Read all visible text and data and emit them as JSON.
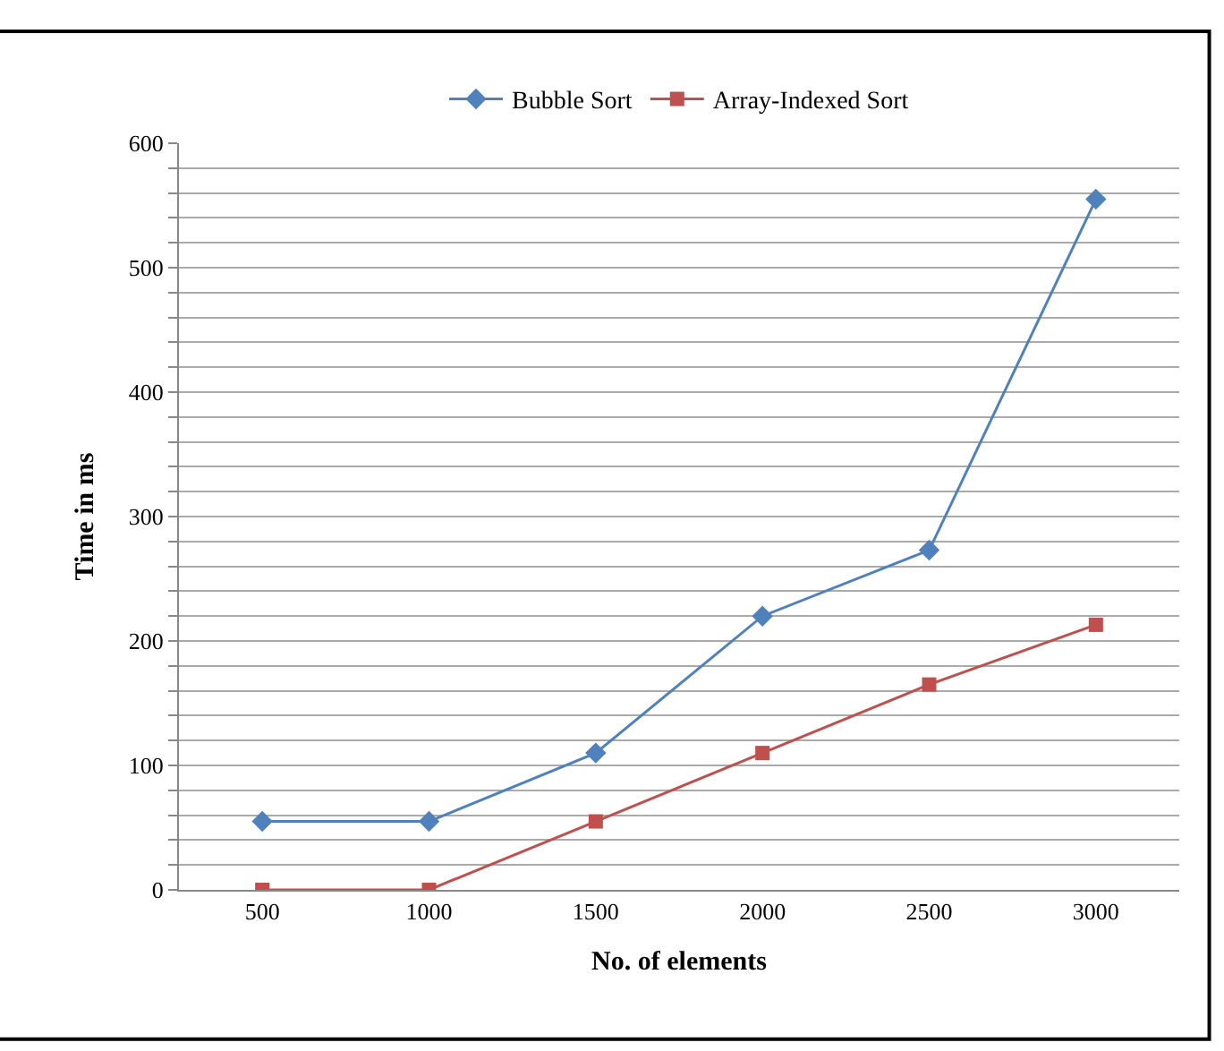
{
  "chart_data": {
    "type": "line",
    "xlabel": "No. of elements",
    "ylabel": "Time in ms",
    "categories": [
      "500",
      "1000",
      "1500",
      "2000",
      "2500",
      "3000"
    ],
    "series": [
      {
        "name": "Bubble Sort",
        "color": "#4f81bd",
        "marker": "diamond",
        "values": [
          55,
          55,
          110,
          220,
          273,
          555
        ]
      },
      {
        "name": "Array-Indexed Sort",
        "color": "#c0504d",
        "marker": "square",
        "values": [
          0,
          0,
          55,
          110,
          165,
          213
        ]
      }
    ],
    "ylim": [
      0,
      600
    ],
    "yticks": [
      0,
      {
        "value": 20,
        "label": null
      },
      {
        "value": 40,
        "label": null
      },
      {
        "value": 60,
        "label": null
      },
      {
        "value": 80,
        "label": null
      },
      100,
      {
        "value": 120,
        "label": null
      },
      {
        "value": 140,
        "label": null
      },
      {
        "value": 160,
        "label": null
      },
      {
        "value": 180,
        "label": null
      },
      200,
      {
        "value": 220,
        "label": null
      },
      {
        "value": 240,
        "label": null
      },
      {
        "value": 260,
        "label": null
      },
      {
        "value": 280,
        "label": null
      },
      300,
      {
        "value": 320,
        "label": null
      },
      {
        "value": 340,
        "label": null
      },
      {
        "value": 360,
        "label": null
      },
      {
        "value": 380,
        "label": null
      },
      400,
      {
        "value": 420,
        "label": null
      },
      {
        "value": 440,
        "label": null
      },
      {
        "value": 460,
        "label": null
      },
      {
        "value": 480,
        "label": null
      },
      500,
      {
        "value": 520,
        "label": null
      },
      {
        "value": 540,
        "label": null
      },
      {
        "value": 560,
        "label": null
      },
      {
        "value": 580,
        "label": null
      },
      600
    ],
    "grid": "y",
    "legend": "top",
    "line_style": "solid"
  }
}
